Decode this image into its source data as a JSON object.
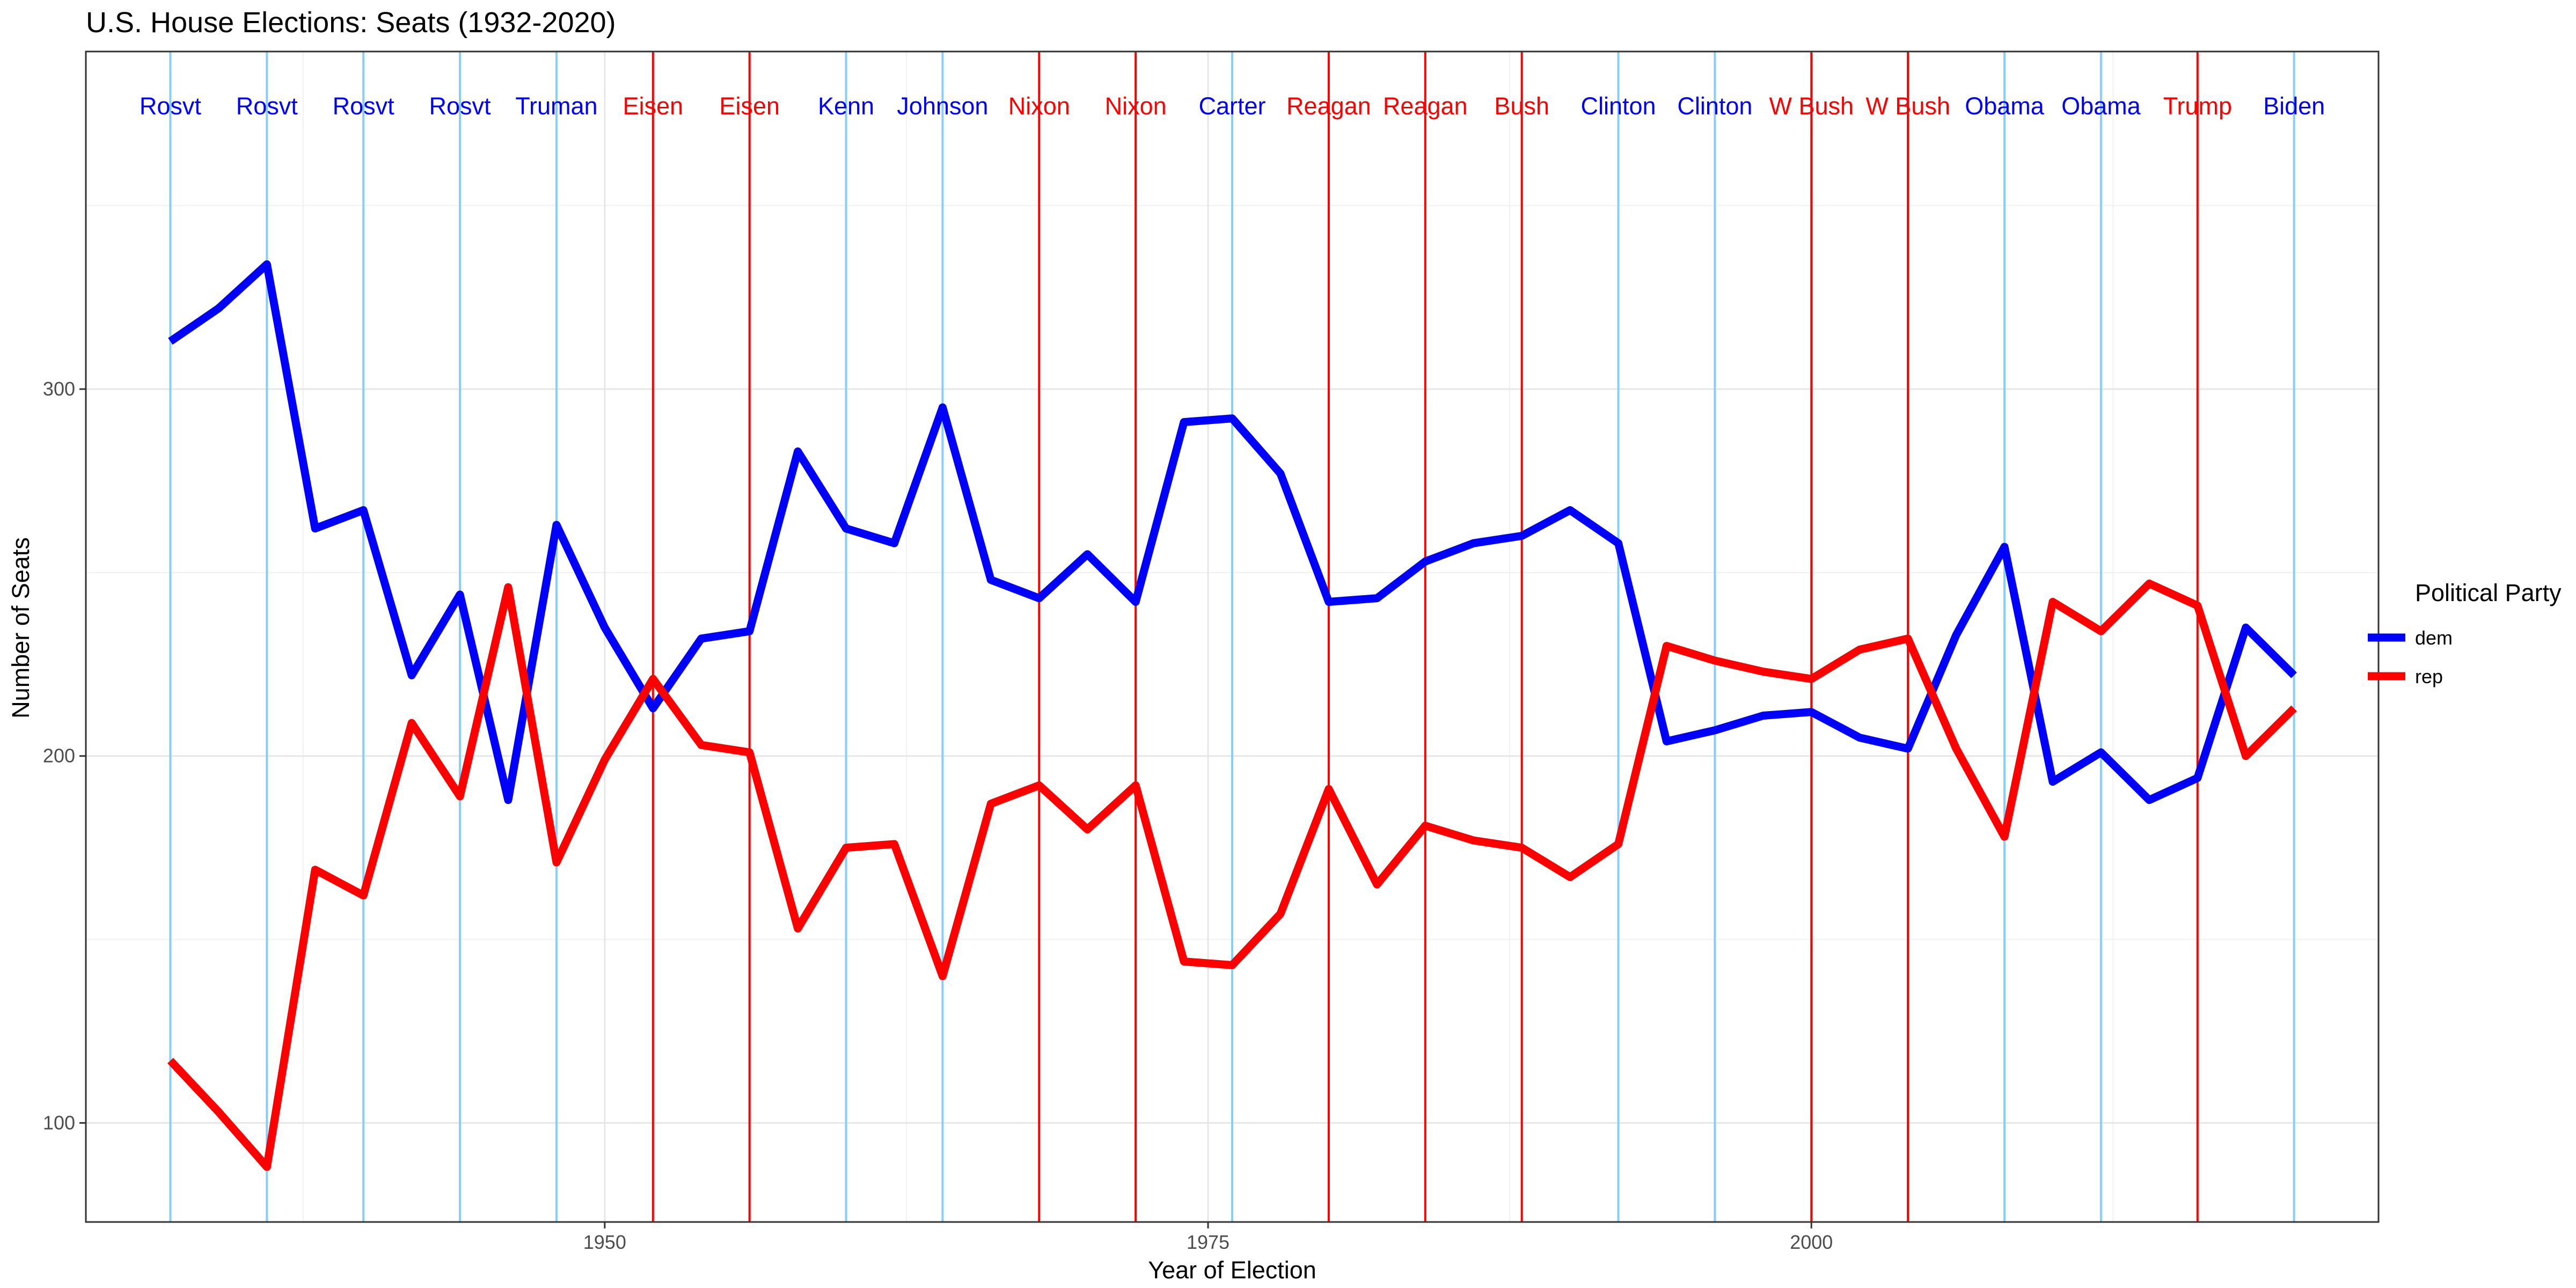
{
  "chart_data": {
    "type": "line",
    "title": "U.S. House Elections: Seats (1932-2020)",
    "xlabel": "Year of Election",
    "ylabel": "Number of Seats",
    "xlim": [
      1928.5,
      2023.5
    ],
    "ylim": [
      73,
      392
    ],
    "x_ticks": [
      1950,
      1975,
      2000
    ],
    "y_ticks": [
      100,
      200,
      300
    ],
    "grid": true,
    "legend": {
      "title": "Political Party",
      "position": "right",
      "entries": [
        "dem",
        "rep"
      ]
    },
    "colors": {
      "dem": "#0000ff",
      "rep": "#ff0000",
      "dem_president_line": "#87cefa",
      "rep_president_line": "#ff0000"
    },
    "x": [
      1932,
      1934,
      1936,
      1938,
      1940,
      1942,
      1944,
      1946,
      1948,
      1950,
      1952,
      1954,
      1956,
      1958,
      1960,
      1962,
      1964,
      1966,
      1968,
      1970,
      1972,
      1974,
      1976,
      1978,
      1980,
      1982,
      1984,
      1986,
      1988,
      1990,
      1992,
      1994,
      1996,
      1998,
      2000,
      2002,
      2004,
      2006,
      2008,
      2010,
      2012,
      2014,
      2016,
      2018,
      2020
    ],
    "series": [
      {
        "name": "dem",
        "values": [
          313,
          322,
          334,
          262,
          267,
          222,
          244,
          188,
          263,
          235,
          213,
          232,
          234,
          283,
          262,
          258,
          295,
          248,
          243,
          255,
          242,
          291,
          292,
          277,
          242,
          243,
          253,
          258,
          260,
          267,
          258,
          204,
          207,
          211,
          212,
          205,
          202,
          233,
          257,
          193,
          201,
          188,
          194,
          235,
          222
        ]
      },
      {
        "name": "rep",
        "values": [
          117,
          103,
          88,
          169,
          162,
          209,
          189,
          246,
          171,
          199,
          221,
          203,
          201,
          153,
          175,
          176,
          140,
          187,
          192,
          180,
          192,
          144,
          143,
          157,
          191,
          165,
          181,
          177,
          175,
          167,
          176,
          230,
          226,
          223,
          221,
          229,
          232,
          202,
          178,
          242,
          234,
          247,
          241,
          200,
          213
        ]
      }
    ],
    "presidents": [
      {
        "year": 1932,
        "label": "Rosvt",
        "party": "dem"
      },
      {
        "year": 1936,
        "label": "Rosvt",
        "party": "dem"
      },
      {
        "year": 1940,
        "label": "Rosvt",
        "party": "dem"
      },
      {
        "year": 1944,
        "label": "Rosvt",
        "party": "dem"
      },
      {
        "year": 1948,
        "label": "Truman",
        "party": "dem"
      },
      {
        "year": 1952,
        "label": "Eisen",
        "party": "rep"
      },
      {
        "year": 1956,
        "label": "Eisen",
        "party": "rep"
      },
      {
        "year": 1960,
        "label": "Kenn",
        "party": "dem"
      },
      {
        "year": 1964,
        "label": "Johnson",
        "party": "dem"
      },
      {
        "year": 1968,
        "label": "Nixon",
        "party": "rep"
      },
      {
        "year": 1972,
        "label": "Nixon",
        "party": "rep"
      },
      {
        "year": 1976,
        "label": "Carter",
        "party": "dem"
      },
      {
        "year": 1980,
        "label": "Reagan",
        "party": "rep"
      },
      {
        "year": 1984,
        "label": "Reagan",
        "party": "rep"
      },
      {
        "year": 1988,
        "label": "Bush",
        "party": "rep"
      },
      {
        "year": 1992,
        "label": "Clinton",
        "party": "dem"
      },
      {
        "year": 1996,
        "label": "Clinton",
        "party": "dem"
      },
      {
        "year": 2000,
        "label": "W Bush",
        "party": "rep"
      },
      {
        "year": 2004,
        "label": "W Bush",
        "party": "rep"
      },
      {
        "year": 2008,
        "label": "Obama",
        "party": "dem"
      },
      {
        "year": 2012,
        "label": "Obama",
        "party": "dem"
      },
      {
        "year": 2016,
        "label": "Trump",
        "party": "rep"
      },
      {
        "year": 2020,
        "label": "Biden",
        "party": "dem"
      }
    ]
  }
}
